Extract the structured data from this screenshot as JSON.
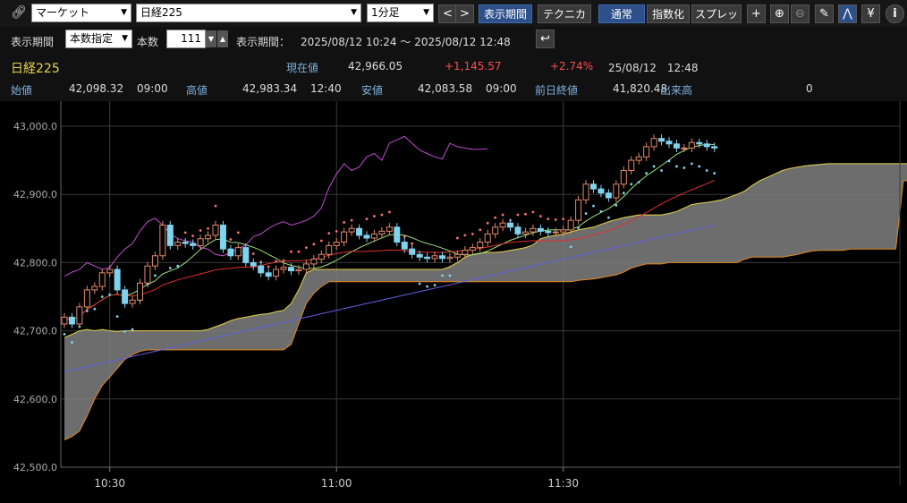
{
  "toolbar": {
    "market_select": "マーケット",
    "symbol_select": "日経225",
    "interval_select": "1分足",
    "prev_label": "<",
    "next_label": ">",
    "display_period_btn": "表示期間",
    "technical_btn": "テクニカル",
    "normal_btn": "通常",
    "index_btn": "指数化",
    "spread_btn": "スプレッド",
    "yen_label": "¥",
    "info_label": "i"
  },
  "period_bar": {
    "display_period_label": "表示期間",
    "mode_select": "本数指定",
    "count_label": "本数",
    "count_value": "111",
    "range_label": "表示期間：",
    "range_value": "2025/08/12 10:24 ～ 2025/08/12 12:48"
  },
  "quote": {
    "name": "日経225",
    "current_label": "現在値",
    "current_value": "42,966.05",
    "change": "+1,145.57",
    "change_pct": "+2.74%",
    "datetime": "25/08/12　12:48",
    "open_label": "始値",
    "open_value": "42,098.32",
    "open_time": "09:00",
    "high_label": "高値",
    "high_value": "42,983.34",
    "high_time": "12:40",
    "low_label": "安値",
    "low_value": "42,083.58",
    "low_time": "09:00",
    "prev_close_label": "前日終値",
    "prev_close_value": "41,820.48",
    "volume_label": "出来高",
    "volume_value": "0"
  },
  "colors": {
    "up_candle": "#000000",
    "down_candle": "#7fd3ef",
    "candle_up_border": "#e38a6a",
    "cloud_fill": "#808080",
    "span_a": "#e8d24a",
    "span_b": "#e0891d",
    "base_line": "#e03030",
    "conversion_line": "#9be07a",
    "ma_long": "#6060e0",
    "lagging": "#c04cd0",
    "sar_up": "#7fd3ef",
    "sar_down": "#ff7070"
  },
  "chart_data": {
    "type": "candlestick",
    "ylim": [
      42500,
      43000
    ],
    "yticks": [
      "42,500.0",
      "42,600.0",
      "42,700.0",
      "42,800.0",
      "42,900.0",
      "43,000.0"
    ],
    "ytick_values": [
      42500,
      42600,
      42700,
      42800,
      42900,
      43000
    ],
    "xticks": [
      "10:30",
      "11:00",
      "11:30"
    ],
    "xtick_index": [
      6,
      36,
      66
    ],
    "closes": [
      42720,
      42710,
      42735,
      42760,
      42765,
      42785,
      42790,
      42760,
      42740,
      42745,
      42770,
      42795,
      42810,
      42855,
      42825,
      42830,
      42828,
      42825,
      42835,
      42840,
      42855,
      42820,
      42810,
      42822,
      42800,
      42795,
      42785,
      42780,
      42790,
      42793,
      42788,
      42790,
      42798,
      42805,
      42812,
      42825,
      42830,
      42845,
      42850,
      42840,
      42836,
      42842,
      42846,
      42852,
      42830,
      42820,
      42812,
      42808,
      42806,
      42810,
      42806,
      42808,
      42812,
      42818,
      42822,
      42830,
      42842,
      42852,
      42858,
      42852,
      42842,
      42845,
      42850,
      42846,
      42844,
      42845,
      42848,
      42862,
      42892,
      42915,
      42908,
      42902,
      42895,
      42915,
      42935,
      42950,
      42955,
      42970,
      42982,
      42978,
      42974,
      42968,
      42968,
      42976,
      42974,
      42970,
      42968
    ],
    "ohlc_range": "10:24-12:48",
    "lagging_span": [
      42780,
      42786,
      42790,
      42800,
      42795,
      42790,
      42793,
      42808,
      42820,
      42828,
      42846,
      42860,
      42865,
      42855,
      42842,
      42835,
      42832,
      42830,
      42822,
      42820,
      42812,
      42810,
      42815,
      42820,
      42826,
      42838,
      42842,
      42850,
      42856,
      42860,
      42855,
      42858,
      42862,
      42868,
      42880,
      42910,
      42930,
      42945,
      42935,
      42940,
      42955,
      42960,
      42950,
      42975,
      42980,
      42985,
      42975,
      42965,
      42960,
      42955,
      42952,
      42975,
      42970,
      42968,
      42966,
      42966,
      42967
    ],
    "kumo_span_a": [
      42690,
      42695,
      42700,
      42702,
      42700,
      42702,
      42700,
      42699,
      42700,
      42700,
      42700,
      42700,
      42700,
      42700,
      42700,
      42700,
      42700,
      42700,
      42700,
      42702,
      42706,
      42710,
      42715,
      42718,
      42720,
      42722,
      42724,
      42725,
      42728,
      42730,
      42740,
      42760,
      42785,
      42790,
      42790,
      42790,
      42790,
      42790,
      42790,
      42790,
      42790,
      42790,
      42790,
      42790,
      42790,
      42790,
      42790,
      42790,
      42790,
      42790,
      42790,
      42794,
      42800,
      42808,
      42812,
      42814,
      42815,
      42815,
      42816,
      42818,
      42820,
      42822,
      42826,
      42835,
      42838,
      42840,
      42842,
      42845,
      42848,
      42850,
      42852,
      42856,
      42860,
      42863,
      42866,
      42868,
      42870,
      42870,
      42870,
      42870,
      42872,
      42875,
      42880,
      42885,
      42887,
      42888,
      42890,
      42892,
      42896,
      42900,
      42905,
      42913,
      42920,
      42925,
      42930,
      42935,
      42938,
      42940,
      42942,
      42943,
      42944,
      42945,
      42945,
      42945,
      42945,
      42945,
      42945,
      42945,
      42945,
      42945,
      42945,
      42945,
      42945,
      42945
    ],
    "kumo_span_b": [
      42540,
      42545,
      42553,
      42575,
      42600,
      42620,
      42632,
      42645,
      42658,
      42665,
      42670,
      42672,
      42672,
      42672,
      42672,
      42672,
      42672,
      42672,
      42672,
      42672,
      42672,
      42672,
      42672,
      42672,
      42672,
      42672,
      42672,
      42672,
      42672,
      42672,
      42680,
      42710,
      42740,
      42755,
      42765,
      42772,
      42772,
      42772,
      42772,
      42772,
      42772,
      42772,
      42772,
      42772,
      42772,
      42772,
      42772,
      42772,
      42772,
      42772,
      42772,
      42772,
      42772,
      42772,
      42772,
      42772,
      42772,
      42772,
      42772,
      42772,
      42772,
      42772,
      42772,
      42772,
      42772,
      42772,
      42772,
      42772,
      42774,
      42775,
      42776,
      42778,
      42780,
      42782,
      42786,
      42792,
      42795,
      42798,
      42798,
      42798,
      42800,
      42800,
      42800,
      42800,
      42800,
      42800,
      42800,
      42800,
      42800,
      42800,
      42805,
      42808,
      42808,
      42808,
      42808,
      42808,
      42810,
      42812,
      42815,
      42817,
      42818,
      42818,
      42818,
      42818,
      42820,
      42820,
      42820,
      42820,
      42820,
      42820,
      42820,
      42920,
      42920,
      42920
    ]
  }
}
